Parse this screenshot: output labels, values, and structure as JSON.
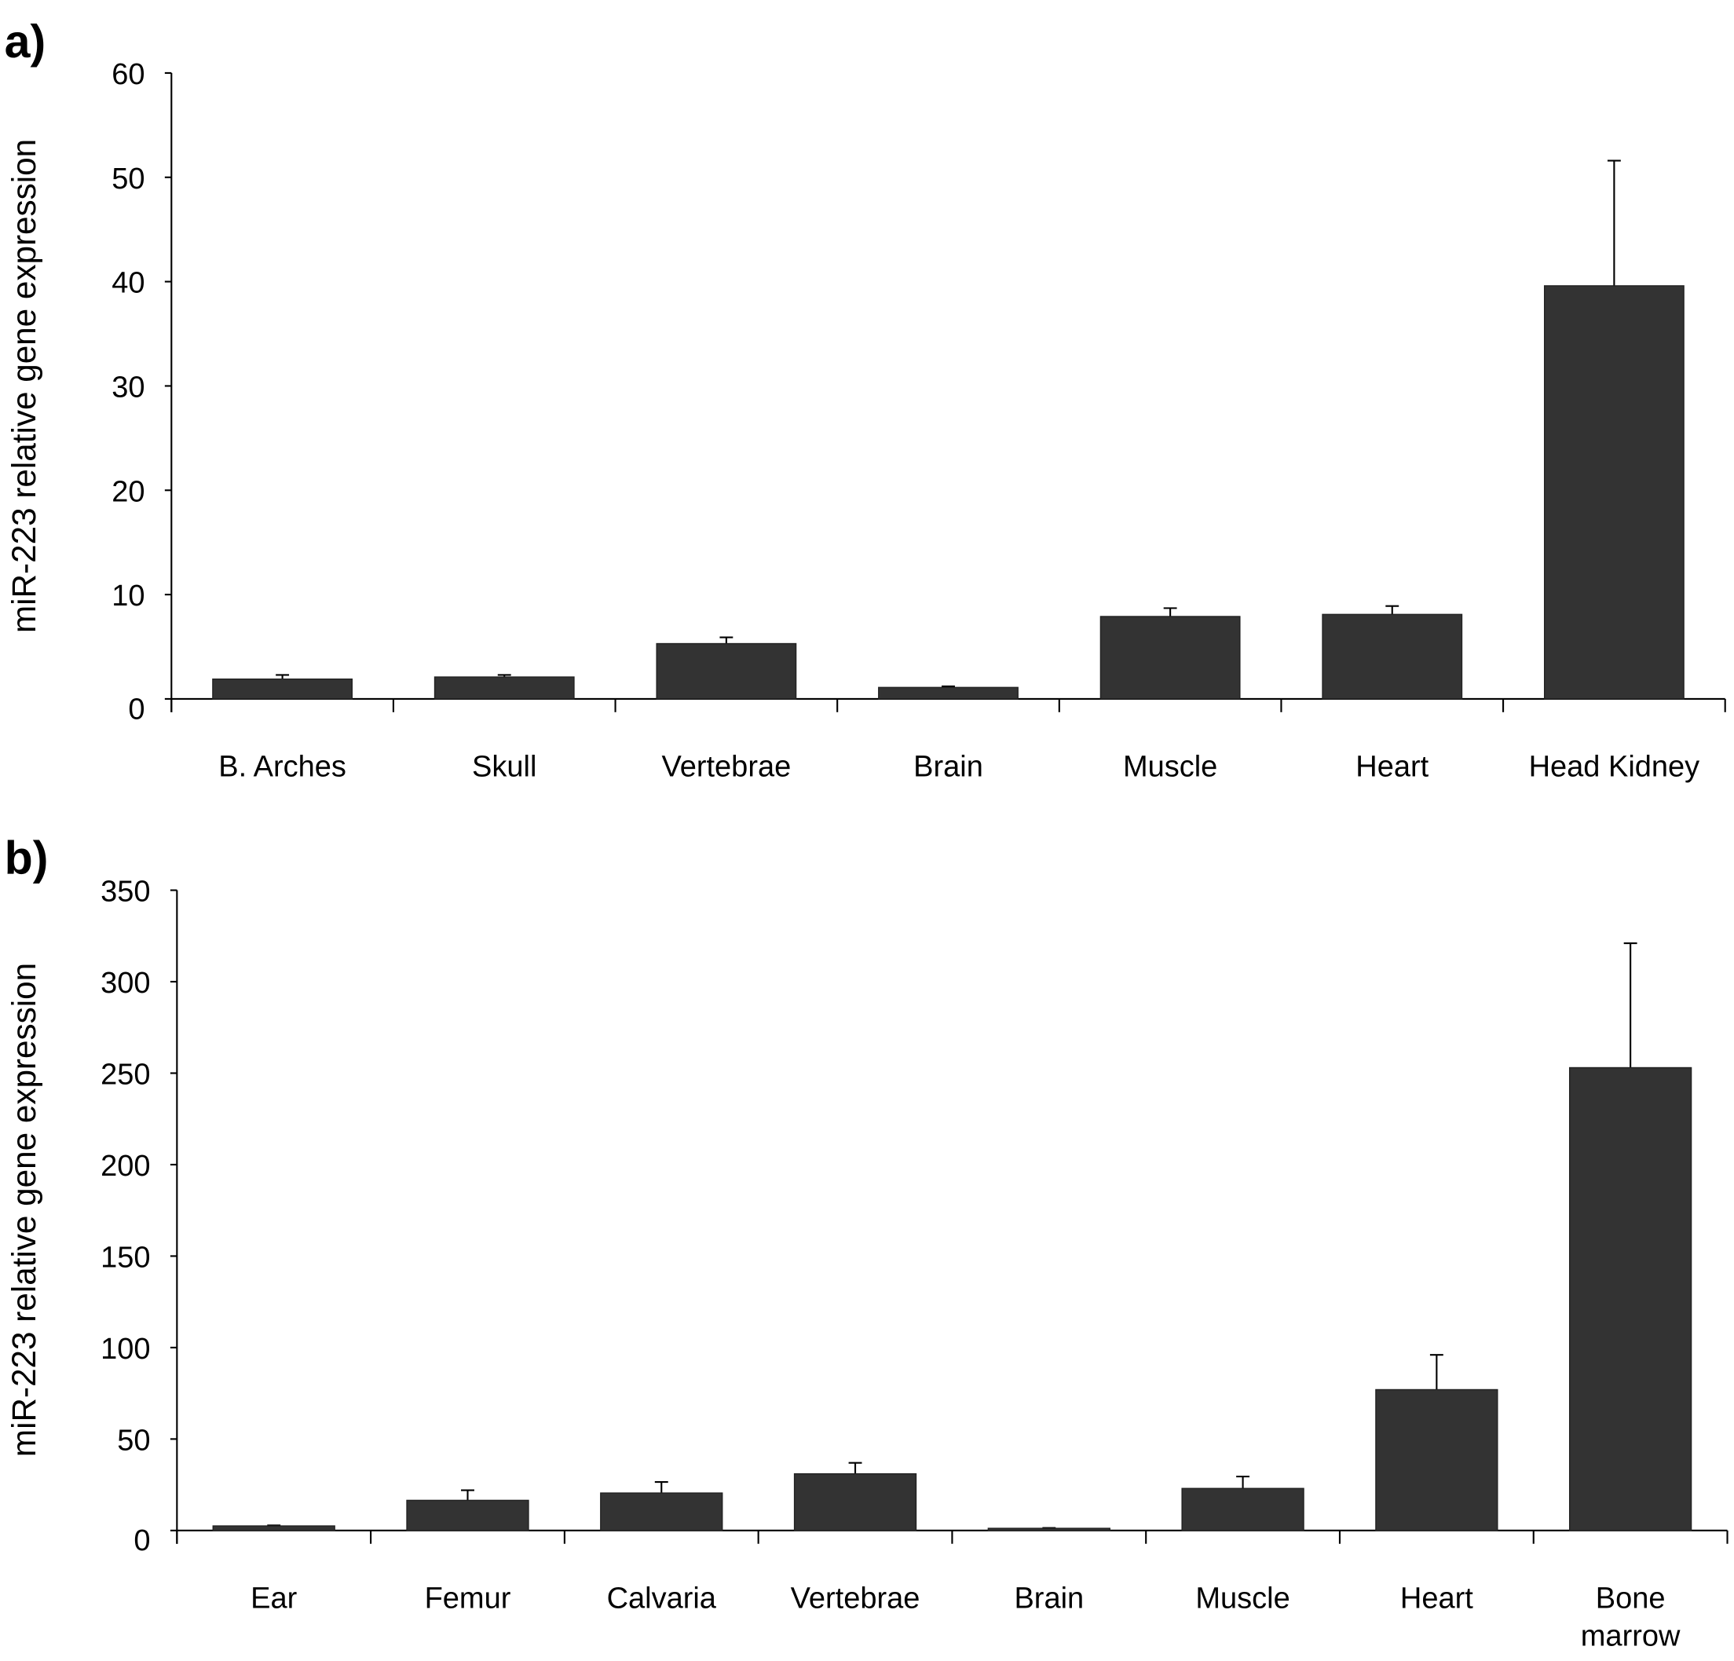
{
  "chart_data": [
    {
      "type": "bar",
      "panel_label": "a)",
      "ylabel": "miR-223 relative gene expression",
      "xlabel": "",
      "ylim": [
        0,
        60
      ],
      "yticks": [
        "0",
        "10",
        "20",
        "30",
        "40",
        "50",
        "60"
      ],
      "categories": [
        "B. Arches",
        "Skull",
        "Vertebrae",
        "Brain",
        "Muscle",
        "Heart",
        "Head Kidney"
      ],
      "values": [
        1.9,
        2.1,
        5.3,
        1.1,
        7.9,
        8.1,
        39.6
      ],
      "error_upper": [
        0.4,
        0.2,
        0.6,
        0.1,
        0.8,
        0.8,
        12.0
      ],
      "bar_color": "#333333",
      "grid": false
    },
    {
      "type": "bar",
      "panel_label": "b)",
      "ylabel": "miR-223 relative gene expression",
      "xlabel": "",
      "ylim": [
        0,
        350
      ],
      "yticks": [
        "0",
        "50",
        "100",
        "150",
        "200",
        "250",
        "300",
        "350"
      ],
      "categories": [
        "Ear",
        "Femur",
        "Calvaria",
        "Vertebrae",
        "Brain",
        "Muscle",
        "Heart",
        "Bone marrow"
      ],
      "values": [
        2.5,
        16.5,
        20.5,
        31,
        1.2,
        23,
        77,
        253
      ],
      "error_upper": [
        0.3,
        5.5,
        6,
        6,
        0.2,
        6.5,
        19,
        68
      ],
      "bar_color": "#333333",
      "grid": false
    }
  ]
}
